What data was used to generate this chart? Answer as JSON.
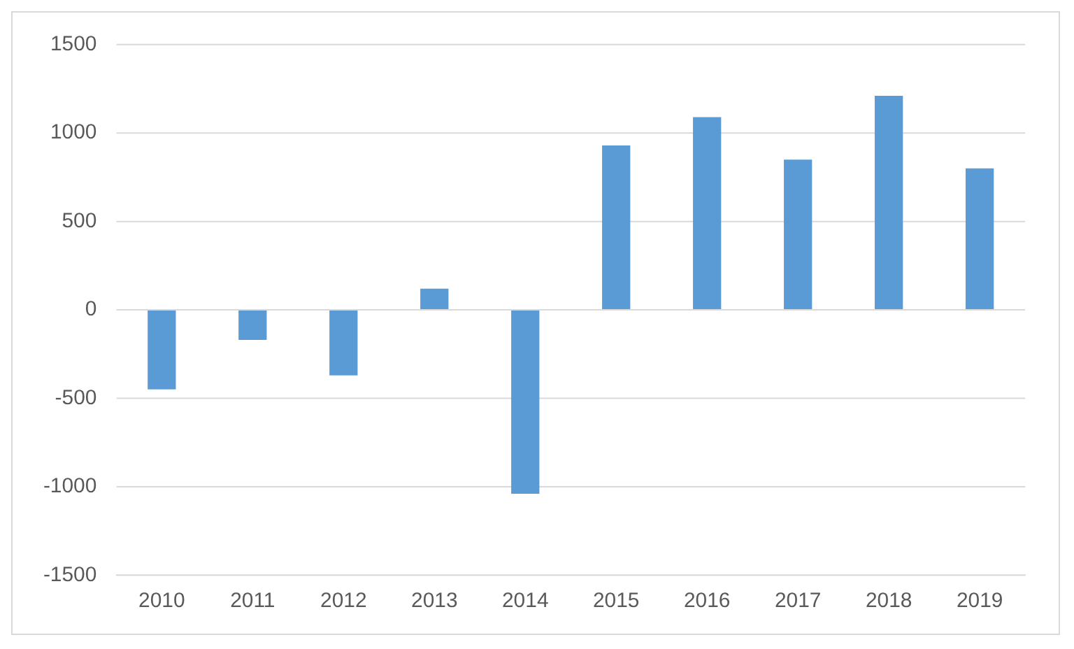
{
  "chart_data": {
    "type": "bar",
    "categories": [
      "2010",
      "2011",
      "2012",
      "2013",
      "2014",
      "2015",
      "2016",
      "2017",
      "2018",
      "2019"
    ],
    "values": [
      -450,
      -170,
      -370,
      120,
      -1040,
      930,
      1090,
      850,
      1210,
      800
    ],
    "color": "#5b9bd5",
    "ylim": [
      -1500,
      1500
    ],
    "yticks": [
      -1500,
      -1000,
      -500,
      0,
      500,
      1000,
      1500
    ],
    "grid": "y"
  }
}
